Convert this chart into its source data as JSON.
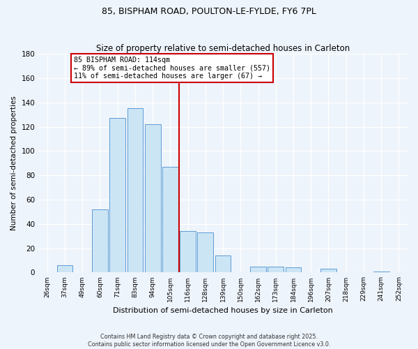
{
  "title": "85, BISPHAM ROAD, POULTON-LE-FYLDE, FY6 7PL",
  "subtitle": "Size of property relative to semi-detached houses in Carleton",
  "xlabel": "Distribution of semi-detached houses by size in Carleton",
  "ylabel": "Number of semi-detached properties",
  "bin_labels": [
    "26sqm",
    "37sqm",
    "49sqm",
    "60sqm",
    "71sqm",
    "83sqm",
    "94sqm",
    "105sqm",
    "116sqm",
    "128sqm",
    "139sqm",
    "150sqm",
    "162sqm",
    "173sqm",
    "184sqm",
    "196sqm",
    "207sqm",
    "218sqm",
    "229sqm",
    "241sqm",
    "252sqm"
  ],
  "counts": [
    0,
    6,
    0,
    52,
    127,
    135,
    122,
    87,
    34,
    33,
    14,
    0,
    5,
    5,
    4,
    0,
    3,
    0,
    0,
    1,
    0
  ],
  "bar_color": "#cce5f5",
  "bar_edge_color": "#5b9bd5",
  "vline_pos": 8,
  "vline_color": "#cc0000",
  "annotation_title": "85 BISPHAM ROAD: 114sqm",
  "annotation_line1": "← 89% of semi-detached houses are smaller (557)",
  "annotation_line2": "11% of semi-detached houses are larger (67) →",
  "annotation_box_color": "white",
  "annotation_box_edge": "#cc0000",
  "ylim": [
    0,
    180
  ],
  "yticks": [
    0,
    20,
    40,
    60,
    80,
    100,
    120,
    140,
    160,
    180
  ],
  "footnote1": "Contains HM Land Registry data © Crown copyright and database right 2025.",
  "footnote2": "Contains public sector information licensed under the Open Government Licence v3.0.",
  "background_color": "#eef4fb",
  "grid_color": "#ffffff",
  "title_fontsize": 9,
  "subtitle_fontsize": 8.5
}
